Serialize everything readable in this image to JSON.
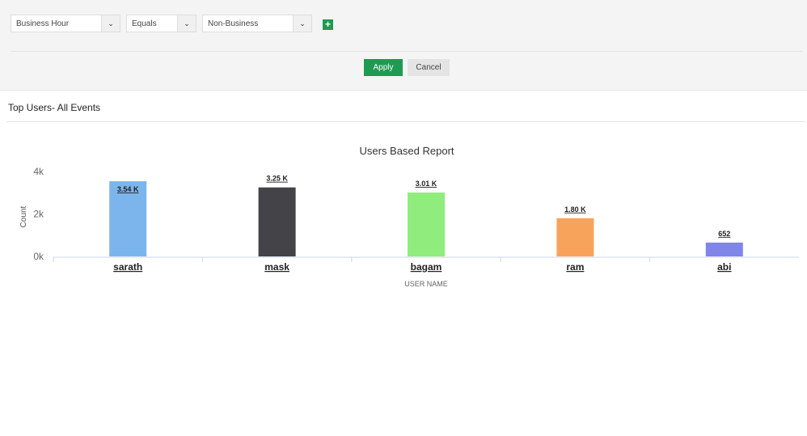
{
  "filter": {
    "field": "Business Hour",
    "operator": "Equals",
    "value": "Non-Business",
    "apply_label": "Apply",
    "cancel_label": "Cancel"
  },
  "section_title": "Top Users- All Events",
  "chart_data": {
    "type": "bar",
    "title": "Users Based Report",
    "xlabel": "USER NAME",
    "ylabel": "Count",
    "categories": [
      "sarath",
      "mask",
      "bagam",
      "ram",
      "abi"
    ],
    "values": [
      3540,
      3250,
      3010,
      1800,
      652
    ],
    "data_labels": [
      "3.54 K",
      "3.25 K",
      "3.01 K",
      "1.80 K",
      "652"
    ],
    "colors": [
      "#7cb5ec",
      "#434348",
      "#90ed7d",
      "#f7a35c",
      "#8085e9"
    ],
    "ylim": [
      0,
      4000
    ],
    "yticks": [
      "0k",
      "2k",
      "4k"
    ],
    "grid": false,
    "legend": "none"
  }
}
